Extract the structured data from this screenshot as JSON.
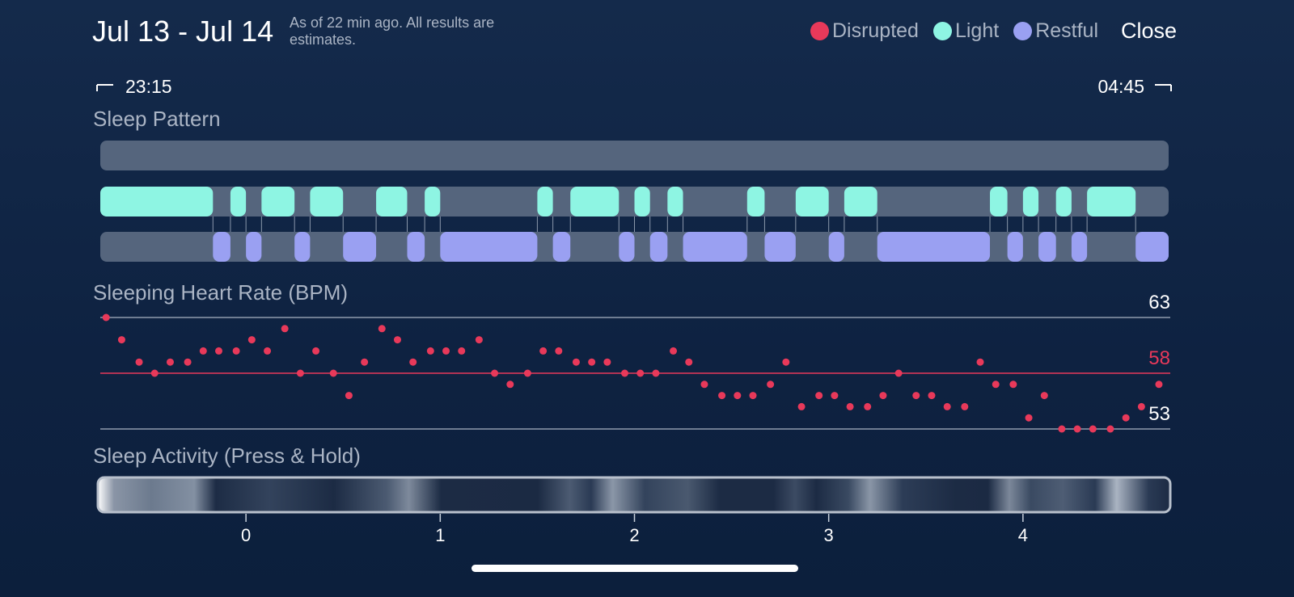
{
  "header": {
    "title": "Jul 13 - Jul 14",
    "note": "As of 22 min ago. All results are estimates.",
    "close": "Close"
  },
  "legend": [
    {
      "name": "Disrupted",
      "color": "#e8395a"
    },
    {
      "name": "Light",
      "color": "#8ef5e3"
    },
    {
      "name": "Restful",
      "color": "#9aa0f2"
    }
  ],
  "time_range": {
    "start": "23:15",
    "end": "04:45"
  },
  "sleep_pattern": {
    "title": "Sleep Pattern",
    "xlim": [
      -0.75,
      4.75
    ],
    "rows": [
      {
        "segments": []
      },
      {
        "segments": [
          [
            -0.75,
            -0.17
          ],
          [
            -0.08,
            0
          ],
          [
            0.08,
            0.25
          ],
          [
            0.33,
            0.5
          ],
          [
            0.67,
            0.83
          ],
          [
            0.92,
            1
          ],
          [
            1.5,
            1.58
          ],
          [
            1.67,
            1.92
          ],
          [
            2,
            2.08
          ],
          [
            2.17,
            2.25
          ],
          [
            2.58,
            2.67
          ],
          [
            2.83,
            3
          ],
          [
            3.08,
            3.25
          ],
          [
            3.83,
            3.92
          ],
          [
            4,
            4.08
          ],
          [
            4.17,
            4.25
          ],
          [
            4.33,
            4.58
          ]
        ]
      },
      {
        "segments": [
          [
            -0.17,
            -0.08
          ],
          [
            0,
            0.08
          ],
          [
            0.25,
            0.33
          ],
          [
            0.5,
            0.67
          ],
          [
            0.83,
            0.92
          ],
          [
            1,
            1.5
          ],
          [
            1.58,
            1.67
          ],
          [
            1.92,
            2
          ],
          [
            2.08,
            2.17
          ],
          [
            2.25,
            2.58
          ],
          [
            2.67,
            2.83
          ],
          [
            3,
            3.08
          ],
          [
            3.25,
            3.83
          ],
          [
            3.92,
            4
          ],
          [
            4.08,
            4.17
          ],
          [
            4.25,
            4.33
          ],
          [
            4.58,
            4.75
          ]
        ]
      }
    ]
  },
  "heart_rate": {
    "title": "Sleeping Heart Rate (BPM)",
    "type": "scatter",
    "color": "#e8395a",
    "x": [
      -0.72,
      -0.64,
      -0.55,
      -0.47,
      -0.39,
      -0.3,
      -0.22,
      -0.14,
      -0.05,
      0.03,
      0.11,
      0.2,
      0.28,
      0.36,
      0.45,
      0.53,
      0.61,
      0.7,
      0.78,
      0.86,
      0.95,
      1.03,
      1.11,
      1.2,
      1.28,
      1.36,
      1.45,
      1.53,
      1.61,
      1.7,
      1.78,
      1.86,
      1.95,
      2.03,
      2.11,
      2.2,
      2.28,
      2.36,
      2.45,
      2.53,
      2.61,
      2.7,
      2.78,
      2.86,
      2.95,
      3.03,
      3.11,
      3.2,
      3.28,
      3.36,
      3.45,
      3.53,
      3.61,
      3.7,
      3.78,
      3.86,
      3.95,
      4.03,
      4.11,
      4.2,
      4.28,
      4.36,
      4.45,
      4.53,
      4.61,
      4.7
    ],
    "values": [
      63,
      61,
      59,
      58,
      59,
      59,
      60,
      60,
      60,
      61,
      60,
      62,
      58,
      60,
      58,
      56,
      59,
      62,
      61,
      59,
      60,
      60,
      60,
      61,
      58,
      57,
      58,
      60,
      60,
      59,
      59,
      59,
      58,
      58,
      58,
      60,
      59,
      57,
      56,
      56,
      56,
      57,
      59,
      55,
      56,
      56,
      55,
      55,
      56,
      58,
      56,
      56,
      55,
      55,
      59,
      57,
      57,
      54,
      56,
      53,
      53,
      53,
      53,
      54,
      55,
      57
    ],
    "ylim": [
      53,
      63
    ],
    "yticks": [
      53,
      63
    ],
    "average": 58
  },
  "activity": {
    "title": "Sleep Activity (Press & Hold)",
    "xticks": [
      0,
      1,
      2,
      3,
      4
    ]
  }
}
